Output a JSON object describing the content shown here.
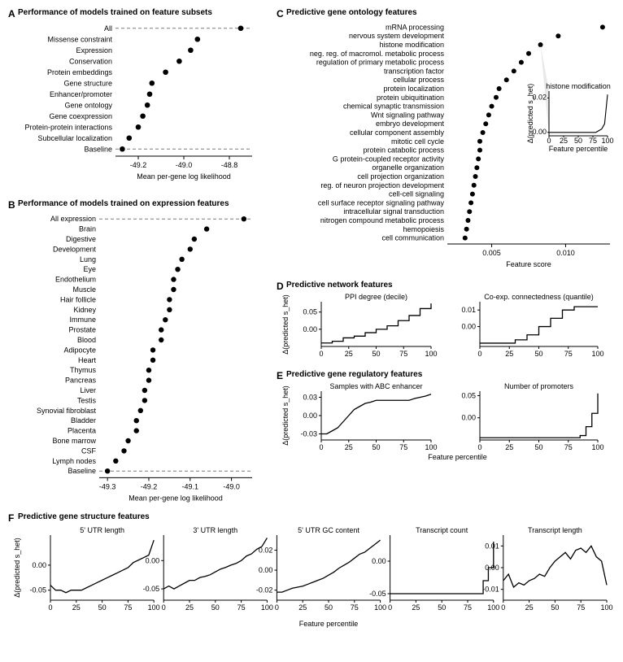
{
  "panelA": {
    "label": "A",
    "title": "Performance of models trained on feature subsets",
    "categories": [
      "All",
      "Missense constraint",
      "Expression",
      "Conservation",
      "Protein embeddings",
      "Gene structure",
      "Enhancer/promoter",
      "Gene ontology",
      "Gene coexpression",
      "Protein-protein interactions",
      "Subcellular localization",
      "Baseline"
    ],
    "values": [
      -48.75,
      -48.94,
      -48.97,
      -49.02,
      -49.08,
      -49.14,
      -49.15,
      -49.16,
      -49.18,
      -49.2,
      -49.24,
      -49.27
    ],
    "xlim": [
      -49.3,
      -48.7
    ],
    "xticks": [
      -49.2,
      -49.0,
      -48.8
    ],
    "xlabel": "Mean per-gene log likelihood",
    "marker_color": "#000000",
    "dash_indices": [
      0,
      11
    ]
  },
  "panelB": {
    "label": "B",
    "title": "Performance of models trained on expression features",
    "categories": [
      "All expression",
      "Brain",
      "Digestive",
      "Development",
      "Lung",
      "Eye",
      "Endothelium",
      "Muscle",
      "Hair follicle",
      "Kidney",
      "Immune",
      "Prostate",
      "Blood",
      "Adipocyte",
      "Heart",
      "Thymus",
      "Pancreas",
      "Liver",
      "Testis",
      "Synovial fibroblast",
      "Bladder",
      "Placenta",
      "Bone marrow",
      "CSF",
      "Lymph nodes",
      "Baseline"
    ],
    "values": [
      -48.97,
      -49.06,
      -49.09,
      -49.1,
      -49.12,
      -49.13,
      -49.14,
      -49.14,
      -49.15,
      -49.15,
      -49.16,
      -49.17,
      -49.17,
      -49.19,
      -49.19,
      -49.2,
      -49.2,
      -49.21,
      -49.21,
      -49.22,
      -49.23,
      -49.23,
      -49.25,
      -49.26,
      -49.28,
      -49.3
    ],
    "xlim": [
      -49.32,
      -48.95
    ],
    "xticks": [
      -49.3,
      -49.2,
      -49.1,
      -49.0
    ],
    "xlabel": "Mean per-gene log likelihood",
    "marker_color": "#000000",
    "dash_indices": [
      0,
      25
    ]
  },
  "panelC": {
    "label": "C",
    "title": "Predictive gene ontology features",
    "categories": [
      "mRNA processing",
      "nervous system development",
      "histone modification",
      "neg. reg. of macromol. metabolic process",
      "regulation of primary metabolic process",
      "transcription factor",
      "cellular process",
      "protein localization",
      "protein ubiquitination",
      "chemical synaptic transmission",
      "Wnt signaling pathway",
      "embryo development",
      "cellular component assembly",
      "mitotic cell cycle",
      "protein catabolic process",
      "G protein-coupled receptor activity",
      "organelle organization",
      "cell projection organization",
      "reg. of neuron projection development",
      "cell-cell signaling",
      "cell surface receptor signaling pathway",
      "intracellular signal transduction",
      "nitrogen compound metabolic process",
      "hemopoiesis",
      "cell communication"
    ],
    "values": [
      0.0125,
      0.0095,
      0.0083,
      0.0075,
      0.007,
      0.0065,
      0.006,
      0.0055,
      0.0053,
      0.005,
      0.0048,
      0.0046,
      0.0044,
      0.0042,
      0.0042,
      0.0041,
      0.004,
      0.0039,
      0.0038,
      0.0037,
      0.0036,
      0.0035,
      0.0034,
      0.0033,
      0.0032
    ],
    "xlim": [
      0.002,
      0.013
    ],
    "xticks": [
      0.005,
      0.01
    ],
    "xlabel": "Feature score",
    "marker_color": "#000000",
    "inset": {
      "title": "histone modification",
      "ylabel": "Δ(predicted s_het)",
      "xlabel": "Feature percentile",
      "xticks": [
        0,
        25,
        50,
        75,
        100
      ],
      "yticks": [
        0.0,
        0.02
      ],
      "line_x": [
        0,
        10,
        20,
        30,
        40,
        50,
        60,
        70,
        80,
        90,
        95,
        100
      ],
      "line_y": [
        0,
        0,
        0,
        0,
        0,
        0,
        0,
        0,
        0,
        0.002,
        0.005,
        0.022
      ],
      "line_color": "#000000"
    }
  },
  "panelD": {
    "label": "D",
    "title": "Predictive network features",
    "plots": [
      {
        "sub_title": "PPI degree (decile)",
        "ylabel": "Δ(predicted s_het)",
        "xticks": [
          0,
          25,
          50,
          75,
          100
        ],
        "yticks": [
          0.0,
          0.05
        ],
        "ylim": [
          -0.05,
          0.08
        ],
        "line_x": [
          0,
          10,
          20,
          30,
          40,
          50,
          60,
          70,
          80,
          90,
          100
        ],
        "line_y": [
          -0.04,
          -0.035,
          -0.025,
          -0.02,
          -0.01,
          0.0,
          0.01,
          0.025,
          0.04,
          0.06,
          0.075
        ],
        "line_color": "#000000",
        "step": true
      },
      {
        "sub_title": "Co-exp. connectedness (quantile)",
        "xticks": [
          0,
          25,
          50,
          75,
          100
        ],
        "yticks": [
          0.0,
          0.01
        ],
        "ylim": [
          -0.012,
          0.015
        ],
        "line_x": [
          0,
          10,
          20,
          30,
          40,
          50,
          60,
          70,
          80,
          90,
          100
        ],
        "line_y": [
          -0.01,
          -0.01,
          -0.01,
          -0.008,
          -0.005,
          0.0,
          0.005,
          0.01,
          0.012,
          0.012,
          0.012
        ],
        "line_color": "#000000",
        "step": true
      }
    ]
  },
  "panelE": {
    "label": "E",
    "title": "Predictive gene regulatory features",
    "plots": [
      {
        "sub_title": "Samples with ABC enhancer",
        "ylabel": "Δ(predicted s_het)",
        "xticks": [
          0,
          25,
          50,
          75,
          100
        ],
        "yticks": [
          -0.03,
          0.0,
          0.03
        ],
        "ylim": [
          -0.04,
          0.04
        ],
        "line_x": [
          0,
          5,
          10,
          15,
          20,
          25,
          30,
          35,
          40,
          45,
          50,
          55,
          60,
          65,
          70,
          75,
          80,
          85,
          90,
          95,
          100
        ],
        "line_y": [
          -0.03,
          -0.03,
          -0.025,
          -0.02,
          -0.01,
          0.0,
          0.01,
          0.015,
          0.02,
          0.022,
          0.025,
          0.025,
          0.025,
          0.025,
          0.025,
          0.025,
          0.025,
          0.028,
          0.03,
          0.032,
          0.035
        ],
        "line_color": "#000000"
      },
      {
        "sub_title": "Number of promoters",
        "xticks": [
          0,
          25,
          50,
          75,
          100
        ],
        "yticks": [
          0.0,
          0.05
        ],
        "ylim": [
          -0.05,
          0.06
        ],
        "line_x": [
          0,
          10,
          20,
          30,
          40,
          50,
          60,
          70,
          80,
          85,
          90,
          95,
          100
        ],
        "line_y": [
          -0.045,
          -0.045,
          -0.045,
          -0.045,
          -0.045,
          -0.045,
          -0.045,
          -0.045,
          -0.045,
          -0.04,
          -0.02,
          0.01,
          0.055
        ],
        "line_color": "#000000",
        "step": true
      }
    ]
  },
  "panelF": {
    "label": "F",
    "title": "Predictive gene structure features",
    "ylabel": "Δ(predicted s_het)",
    "xlabel": "Feature percentile",
    "plots": [
      {
        "sub_title": "5' UTR length",
        "xticks": [
          0,
          25,
          50,
          75,
          100
        ],
        "yticks": [
          -0.05,
          0.0
        ],
        "ylim": [
          -0.07,
          0.06
        ],
        "line_x": [
          0,
          5,
          10,
          15,
          20,
          25,
          30,
          35,
          40,
          45,
          50,
          55,
          60,
          65,
          70,
          75,
          80,
          85,
          90,
          95,
          100
        ],
        "line_y": [
          -0.04,
          -0.05,
          -0.05,
          -0.055,
          -0.05,
          -0.05,
          -0.05,
          -0.045,
          -0.04,
          -0.035,
          -0.03,
          -0.025,
          -0.02,
          -0.015,
          -0.01,
          -0.005,
          0.005,
          0.01,
          0.015,
          0.02,
          0.05
        ],
        "line_color": "#000000"
      },
      {
        "sub_title": "3' UTR length",
        "xticks": [
          0,
          25,
          50,
          75,
          100
        ],
        "yticks": [
          -0.05,
          0.0
        ],
        "ylim": [
          -0.07,
          0.045
        ],
        "line_x": [
          0,
          5,
          10,
          15,
          20,
          25,
          30,
          35,
          40,
          45,
          50,
          55,
          60,
          65,
          70,
          75,
          80,
          85,
          90,
          95,
          100
        ],
        "line_y": [
          -0.05,
          -0.045,
          -0.05,
          -0.045,
          -0.04,
          -0.035,
          -0.035,
          -0.03,
          -0.028,
          -0.025,
          -0.02,
          -0.015,
          -0.012,
          -0.008,
          -0.005,
          0.0,
          0.008,
          0.012,
          0.02,
          0.025,
          0.04
        ],
        "line_color": "#000000"
      },
      {
        "sub_title": "5' UTR GC content",
        "xticks": [
          0,
          25,
          50,
          75,
          100
        ],
        "yticks": [
          -0.02,
          0.0,
          0.02
        ],
        "ylim": [
          -0.03,
          0.035
        ],
        "line_x": [
          0,
          5,
          10,
          15,
          20,
          25,
          30,
          35,
          40,
          45,
          50,
          55,
          60,
          65,
          70,
          75,
          80,
          85,
          90,
          95,
          100
        ],
        "line_y": [
          -0.022,
          -0.022,
          -0.02,
          -0.018,
          -0.017,
          -0.016,
          -0.014,
          -0.012,
          -0.01,
          -0.008,
          -0.005,
          -0.002,
          0.002,
          0.005,
          0.008,
          0.012,
          0.016,
          0.018,
          0.022,
          0.026,
          0.03
        ],
        "line_color": "#000000"
      },
      {
        "sub_title": "Transcript count",
        "xticks": [
          0,
          25,
          50,
          75,
          100
        ],
        "yticks": [
          -0.05,
          0.0
        ],
        "ylim": [
          -0.06,
          0.04
        ],
        "line_x": [
          0,
          10,
          20,
          30,
          40,
          50,
          60,
          70,
          80,
          90,
          95,
          100
        ],
        "line_y": [
          -0.05,
          -0.05,
          -0.05,
          -0.05,
          -0.05,
          -0.05,
          -0.05,
          -0.05,
          -0.05,
          -0.03,
          -0.01,
          0.03
        ],
        "line_color": "#000000",
        "step": true
      },
      {
        "sub_title": "Transcript length",
        "xticks": [
          0,
          25,
          50,
          75,
          100
        ],
        "yticks": [
          -0.01,
          0.0,
          0.01
        ],
        "ylim": [
          -0.015,
          0.015
        ],
        "line_x": [
          0,
          5,
          10,
          15,
          20,
          25,
          30,
          35,
          40,
          45,
          50,
          55,
          60,
          65,
          70,
          75,
          80,
          85,
          90,
          95,
          100
        ],
        "line_y": [
          -0.006,
          -0.003,
          -0.009,
          -0.007,
          -0.008,
          -0.006,
          -0.005,
          -0.003,
          -0.004,
          0.0,
          0.003,
          0.005,
          0.007,
          0.004,
          0.008,
          0.009,
          0.007,
          0.01,
          0.005,
          0.003,
          -0.008
        ],
        "line_color": "#000000"
      }
    ]
  }
}
